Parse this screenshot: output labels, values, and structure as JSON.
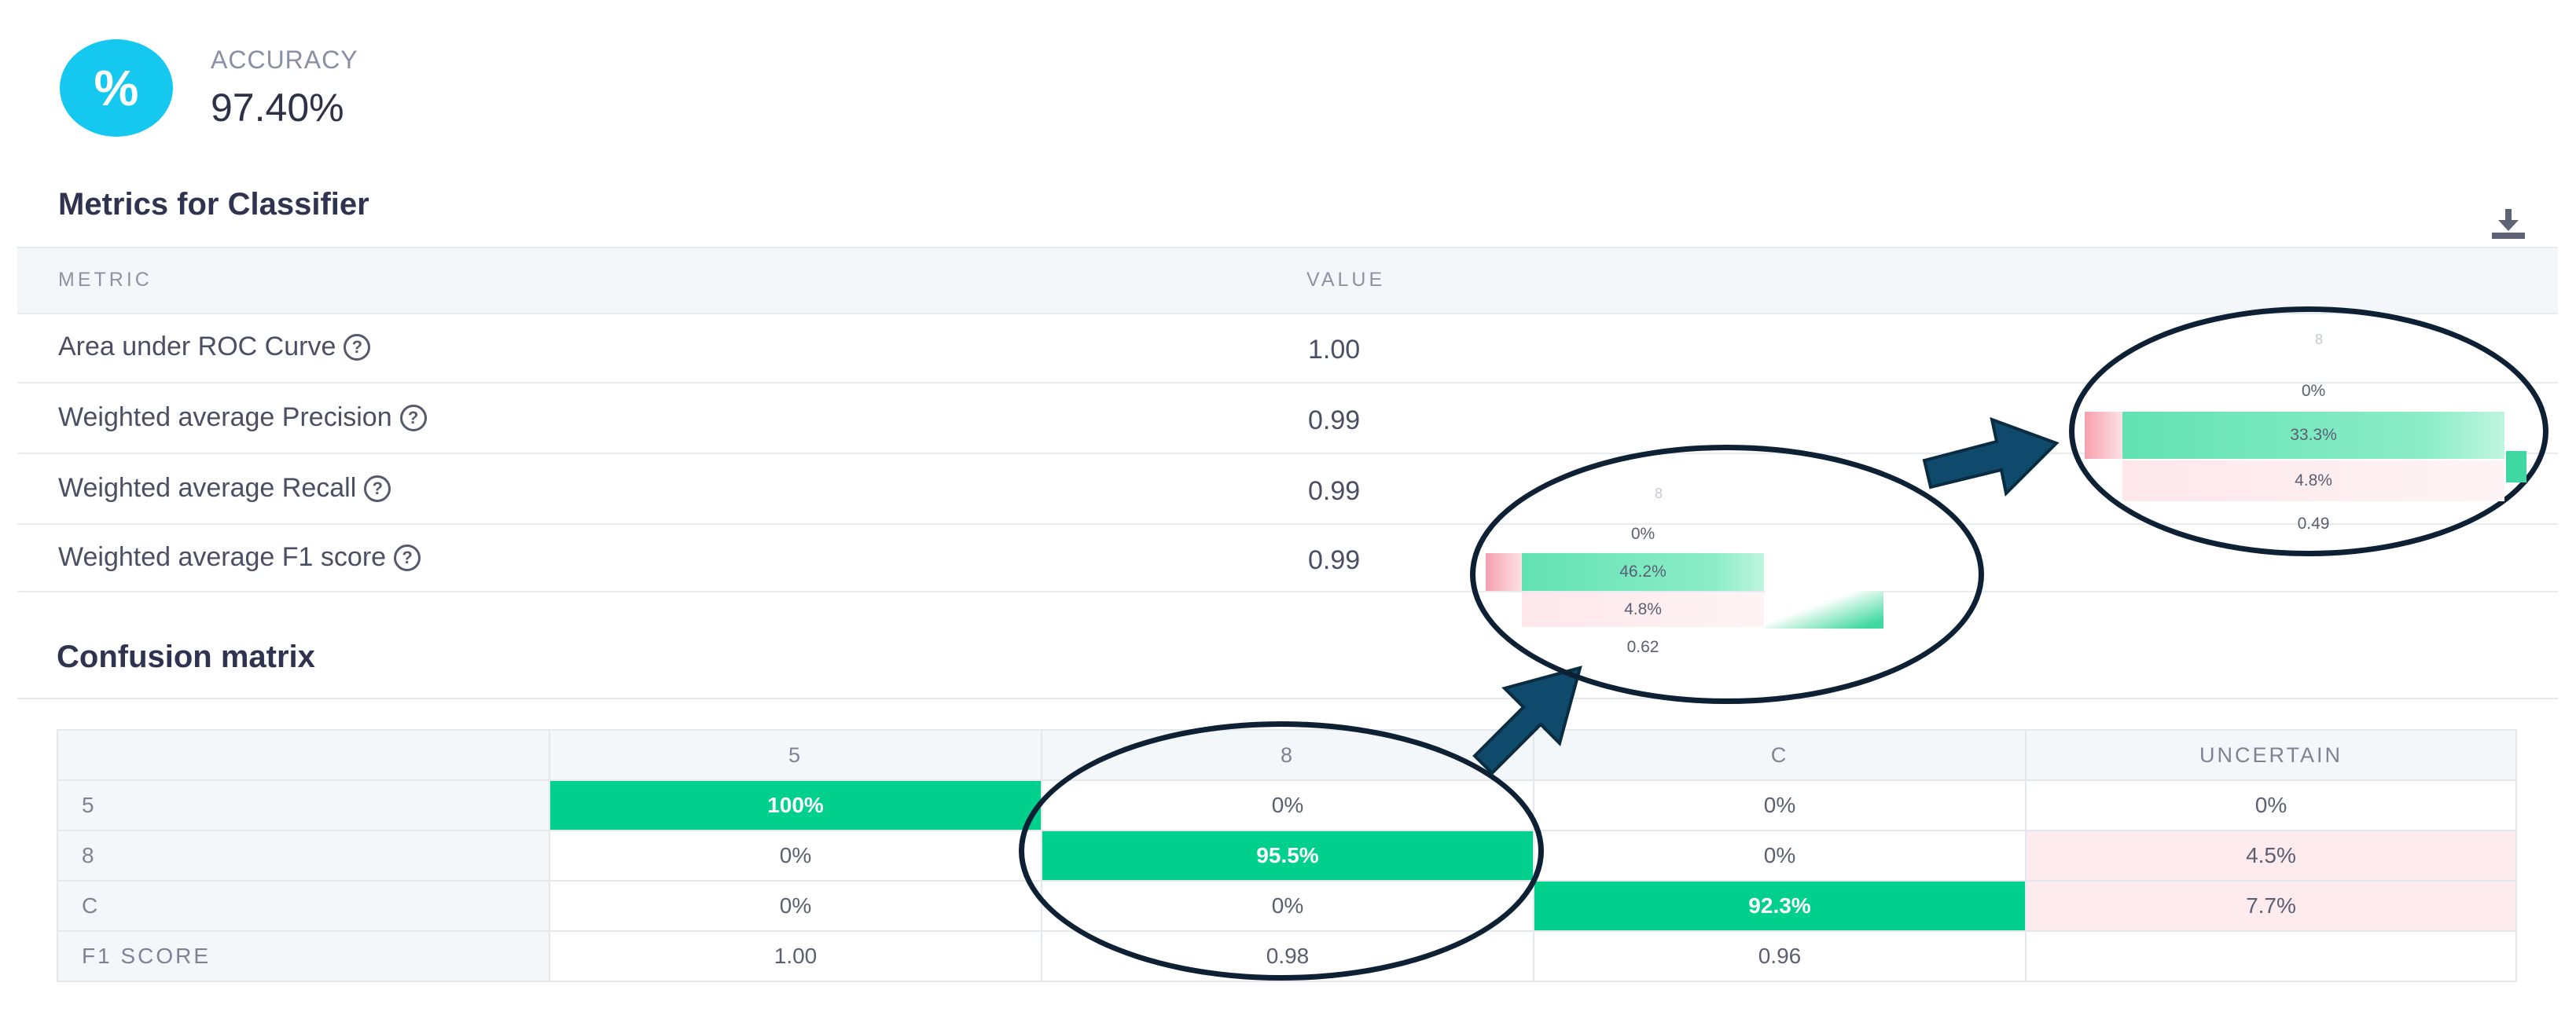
{
  "accuracy": {
    "icon": "percent-icon",
    "icon_glyph": "%",
    "label": "ACCURACY",
    "value": "97.40%"
  },
  "metrics": {
    "title": "Metrics for Classifier",
    "columns": {
      "metric": "METRIC",
      "value": "VALUE"
    },
    "rows": [
      {
        "name": "Area under ROC Curve",
        "value": "1.00"
      },
      {
        "name": "Weighted average Precision",
        "value": "0.99"
      },
      {
        "name": "Weighted average Recall",
        "value": "0.99"
      },
      {
        "name": "Weighted average F1 score",
        "value": "0.99"
      }
    ],
    "help_glyph": "?"
  },
  "confusion": {
    "title": "Confusion matrix",
    "columns": [
      "5",
      "8",
      "C",
      "UNCERTAIN"
    ],
    "rows": [
      {
        "label": "5",
        "cells": [
          "100%",
          "0%",
          "0%",
          "0%"
        ]
      },
      {
        "label": "8",
        "cells": [
          "0%",
          "95.5%",
          "0%",
          "4.5%"
        ]
      },
      {
        "label": "C",
        "cells": [
          "0%",
          "0%",
          "92.3%",
          "7.7%"
        ]
      },
      {
        "label": "F1 SCORE",
        "cells": [
          "1.00",
          "0.98",
          "0.96",
          ""
        ]
      }
    ]
  },
  "zoom1": {
    "header": "8",
    "cells": [
      "0%",
      "46.2%",
      "4.8%",
      "0.62"
    ]
  },
  "zoom2": {
    "header": "8",
    "cells": [
      "0%",
      "33.3%",
      "4.8%",
      "0.49"
    ]
  },
  "colors": {
    "accent": "#14c8ef",
    "green": "#00d08c",
    "pink": "#fdebee",
    "callout": "#0e2033",
    "arrow": "#0f4a6c"
  }
}
